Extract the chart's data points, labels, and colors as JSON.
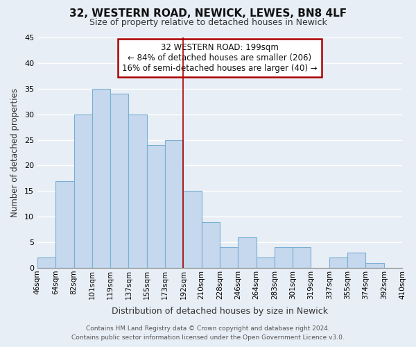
{
  "title": "32, WESTERN ROAD, NEWICK, LEWES, BN8 4LF",
  "subtitle": "Size of property relative to detached houses in Newick",
  "xlabel": "Distribution of detached houses by size in Newick",
  "ylabel": "Number of detached properties",
  "bin_labels": [
    "46sqm",
    "64sqm",
    "82sqm",
    "101sqm",
    "119sqm",
    "137sqm",
    "155sqm",
    "173sqm",
    "192sqm",
    "210sqm",
    "228sqm",
    "246sqm",
    "264sqm",
    "283sqm",
    "301sqm",
    "319sqm",
    "337sqm",
    "355sqm",
    "374sqm",
    "392sqm",
    "410sqm"
  ],
  "bar_values": [
    2,
    17,
    30,
    35,
    34,
    30,
    24,
    25,
    15,
    9,
    4,
    6,
    2,
    4,
    4,
    0,
    2,
    3,
    1,
    0
  ],
  "bar_color": "#c5d8ed",
  "bar_edge_color": "#7aafd4",
  "vline_x": 8,
  "vline_color": "#aa0000",
  "ylim": [
    0,
    45
  ],
  "yticks": [
    0,
    5,
    10,
    15,
    20,
    25,
    30,
    35,
    40,
    45
  ],
  "annotation_title": "32 WESTERN ROAD: 199sqm",
  "annotation_line1": "← 84% of detached houses are smaller (206)",
  "annotation_line2": "16% of semi-detached houses are larger (40) →",
  "annotation_box_color": "#ffffff",
  "annotation_box_edge": "#aa0000",
  "footer_line1": "Contains HM Land Registry data © Crown copyright and database right 2024.",
  "footer_line2": "Contains public sector information licensed under the Open Government Licence v3.0.",
  "bg_color": "#e8eef5",
  "grid_color": "#ffffff"
}
